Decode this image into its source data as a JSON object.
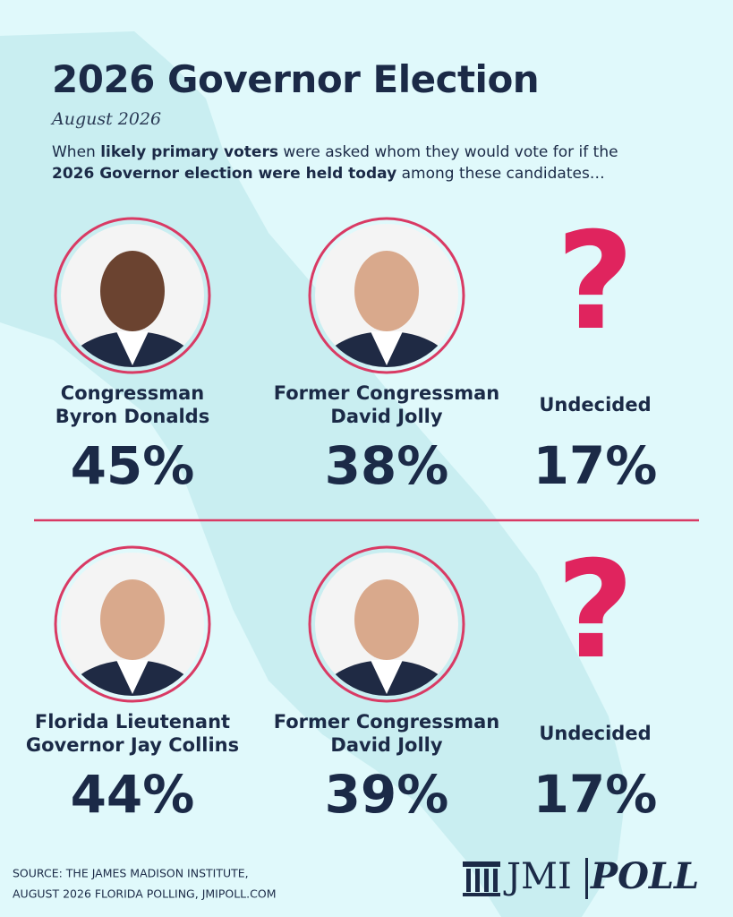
{
  "header": {
    "title": "2026 Governor Election",
    "date": "August 2026",
    "description": [
      {
        "text": "When ",
        "bold": false
      },
      {
        "text": "likely primary voters",
        "bold": true
      },
      {
        "text": " were asked whom they would vote for if the ",
        "bold": false
      },
      {
        "text": "2026 Governor election were held today",
        "bold": true
      },
      {
        "text": " among these candidates…",
        "bold": false
      }
    ]
  },
  "matchups": [
    {
      "candidates": [
        {
          "name": [
            "Congressman",
            "Byron Donalds"
          ],
          "percent": "45%"
        },
        {
          "name": [
            "Former Congressman",
            "David Jolly"
          ],
          "percent": "38%"
        },
        {
          "name": [
            "Undecided"
          ],
          "symbol": "?",
          "percent": "17%"
        }
      ]
    },
    {
      "candidates": [
        {
          "name": [
            "Florida Lieutenant",
            "Governor Jay Collins"
          ],
          "percent": "44%"
        },
        {
          "name": [
            "Former Congressman",
            "David Jolly"
          ],
          "percent": "39%"
        },
        {
          "name": [
            "Undecided"
          ],
          "symbol": "?",
          "percent": "17%"
        }
      ]
    }
  ],
  "footer": {
    "source": [
      "SOURCE: THE JAMES MADISON INSTITUTE,",
      "AUGUST 2026 FLORIDA POLLING, JMIPOLL.COM"
    ],
    "logo": {
      "left": "JMI",
      "right": "POLL"
    }
  }
}
